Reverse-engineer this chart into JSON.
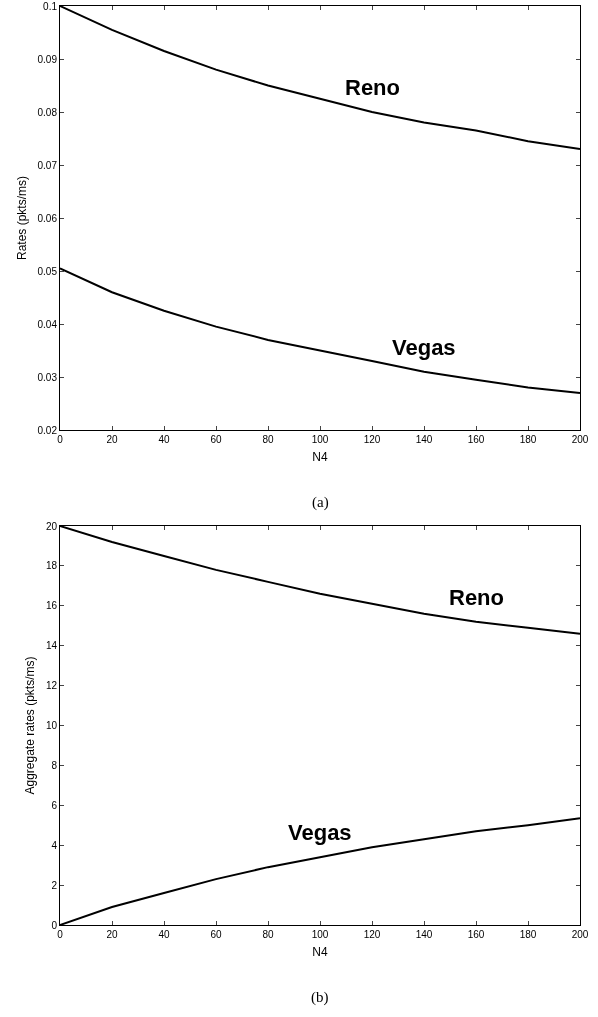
{
  "chart_data": [
    {
      "type": "line",
      "xlabel": "N4",
      "ylabel": "Rates (pkts/ms)",
      "x": [
        0,
        20,
        40,
        60,
        80,
        100,
        120,
        140,
        160,
        180,
        200
      ],
      "series": [
        {
          "color": "#000000",
          "values": [
            0.1,
            0.0955,
            0.0915,
            0.088,
            0.085,
            0.0825,
            0.08,
            0.078,
            0.0765,
            0.0745,
            0.073
          ]
        },
        {
          "color": "#000000",
          "values": [
            0.0505,
            0.046,
            0.0425,
            0.0395,
            0.037,
            0.035,
            0.033,
            0.031,
            0.0295,
            0.028,
            0.027
          ]
        }
      ],
      "xlim": [
        0,
        200
      ],
      "xticks": [
        0,
        20,
        40,
        60,
        80,
        100,
        120,
        140,
        160,
        180,
        200
      ],
      "ylim": [
        0.02,
        0.1
      ],
      "yticks": [
        0.02,
        0.03,
        0.04,
        0.05,
        0.06,
        0.07,
        0.08,
        0.09,
        0.1
      ],
      "grid": false,
      "marker": "none",
      "line_style": "solid",
      "annotations": [
        {
          "text": "Reno",
          "x": 120,
          "y": 0.08
        },
        {
          "text": "Vegas",
          "x": 140,
          "y": 0.031
        },
        "(a)"
      ]
    },
    {
      "type": "line",
      "xlabel": "N4",
      "ylabel": "Aggregate rates (pkts/ms)",
      "x": [
        0,
        20,
        40,
        60,
        80,
        100,
        120,
        140,
        160,
        180,
        200
      ],
      "series": [
        {
          "color": "#000000",
          "values": [
            20,
            19.2,
            18.5,
            17.8,
            17.2,
            16.6,
            16.1,
            15.6,
            15.2,
            14.9,
            14.6
          ]
        },
        {
          "color": "#000000",
          "values": [
            0,
            0.9,
            1.6,
            2.3,
            2.9,
            3.4,
            3.9,
            4.3,
            4.7,
            5.0,
            5.35
          ]
        }
      ],
      "xlim": [
        0,
        200
      ],
      "xticks": [
        0,
        20,
        40,
        60,
        80,
        100,
        120,
        140,
        160,
        180,
        200
      ],
      "ylim": [
        0,
        20
      ],
      "yticks": [
        0,
        2,
        4,
        6,
        8,
        10,
        12,
        14,
        16,
        18,
        20
      ],
      "grid": false,
      "marker": "none",
      "line_style": "solid",
      "annotations": [
        {
          "text": "Reno",
          "x": 160,
          "y": 15.2
        },
        {
          "text": "Vegas",
          "x": 100,
          "y": 3.4
        },
        "(b)"
      ]
    }
  ]
}
